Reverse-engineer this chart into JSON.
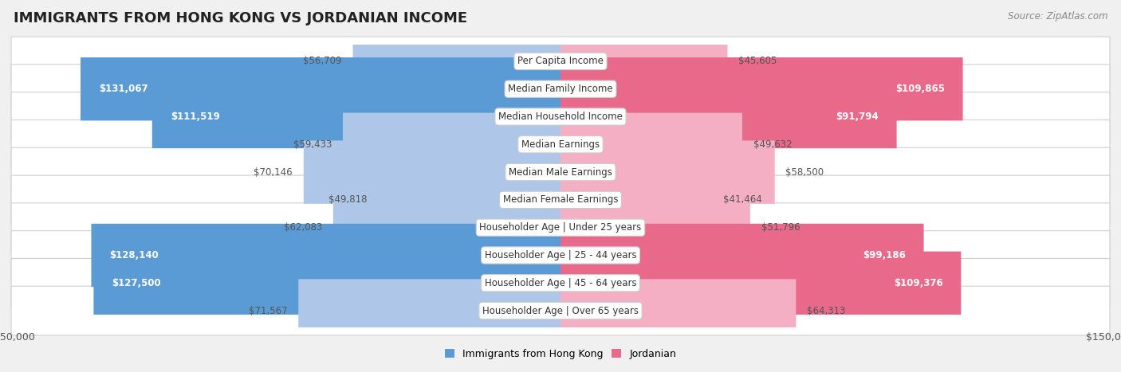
{
  "title": "IMMIGRANTS FROM HONG KONG VS JORDANIAN INCOME",
  "source": "Source: ZipAtlas.com",
  "categories": [
    "Per Capita Income",
    "Median Family Income",
    "Median Household Income",
    "Median Earnings",
    "Median Male Earnings",
    "Median Female Earnings",
    "Householder Age | Under 25 years",
    "Householder Age | 25 - 44 years",
    "Householder Age | 45 - 64 years",
    "Householder Age | Over 65 years"
  ],
  "hk_values": [
    56709,
    131067,
    111519,
    59433,
    70146,
    49818,
    62083,
    128140,
    127500,
    71567
  ],
  "jordan_values": [
    45605,
    109865,
    91794,
    49632,
    58500,
    41464,
    51796,
    99186,
    109376,
    64313
  ],
  "hk_labels": [
    "$56,709",
    "$131,067",
    "$111,519",
    "$59,433",
    "$70,146",
    "$49,818",
    "$62,083",
    "$128,140",
    "$127,500",
    "$71,567"
  ],
  "jordan_labels": [
    "$45,605",
    "$109,865",
    "$91,794",
    "$49,632",
    "$58,500",
    "$41,464",
    "$51,796",
    "$99,186",
    "$109,376",
    "$64,313"
  ],
  "hk_color_light": "#aec6e8",
  "hk_color_dark": "#5b9bd5",
  "jordan_color_light": "#f4afc4",
  "jordan_color_dark": "#e8698a",
  "max_value": 150000,
  "legend_hk": "Immigrants from Hong Kong",
  "legend_jordan": "Jordanian",
  "bg_color": "#f0f0f0",
  "row_bg_color": "#ffffff",
  "row_border_color": "#d0d0d0",
  "title_fontsize": 13,
  "label_fontsize": 8.5,
  "axis_label_fontsize": 9,
  "source_fontsize": 8.5,
  "threshold": 80000
}
